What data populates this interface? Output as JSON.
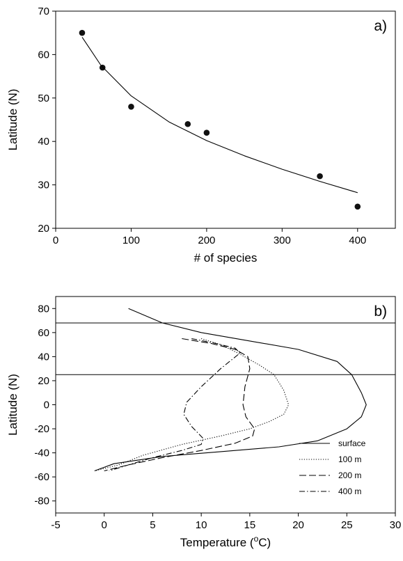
{
  "chart_data": [
    {
      "type": "scatter",
      "panel_label": "a)",
      "xlabel": "# of species",
      "ylabel": "Latitude (N)",
      "xlim": [
        0,
        450
      ],
      "ylim": [
        20,
        70
      ],
      "x_ticks": [
        0,
        100,
        200,
        300,
        400
      ],
      "y_ticks": [
        20,
        30,
        40,
        50,
        60,
        70
      ],
      "grid": false,
      "series": [
        {
          "kind": "points",
          "x": [
            35,
            62,
            100,
            175,
            200,
            350,
            400
          ],
          "y": [
            65,
            57,
            48,
            44,
            42,
            32,
            25
          ]
        },
        {
          "kind": "fit-line",
          "x": [
            35,
            60,
            100,
            150,
            200,
            250,
            300,
            350,
            400
          ],
          "y": [
            64,
            57.5,
            50.5,
            44.5,
            40.2,
            36.7,
            33.6,
            30.8,
            28.2
          ]
        }
      ]
    },
    {
      "type": "line",
      "panel_label": "b)",
      "xlabel": "Temperature (°C)",
      "xlabel_parts": {
        "before": "Temperature (",
        "sup": "o",
        "after": "C)"
      },
      "ylabel": "Latitude (N)",
      "xlim": [
        -5,
        30
      ],
      "ylim": [
        -90,
        90
      ],
      "x_ticks": [
        -5,
        0,
        5,
        10,
        15,
        20,
        25,
        30
      ],
      "y_ticks": [
        -80,
        -60,
        -40,
        -20,
        0,
        20,
        40,
        60,
        80
      ],
      "grid": false,
      "legend_position": "bottom-right",
      "reference_lines_y": [
        68,
        25
      ],
      "series": [
        {
          "name": "surface",
          "dash": "solid",
          "x": [
            2.5,
            6,
            10,
            15,
            20,
            24,
            25.5,
            26.5,
            27,
            26.5,
            25,
            22,
            18,
            12,
            6,
            1,
            -1
          ],
          "y": [
            80,
            68,
            60,
            53,
            46,
            36,
            25,
            10,
            0,
            -10,
            -20,
            -30,
            -35,
            -39,
            -43,
            -49,
            -55
          ]
        },
        {
          "name": "100 m",
          "dash": "dotted",
          "x": [
            10,
            12,
            14,
            16,
            17.5,
            18.5,
            19,
            18.5,
            17,
            15,
            12,
            8,
            4,
            1.5,
            -1
          ],
          "y": [
            55,
            50,
            42,
            33,
            25,
            12,
            0,
            -8,
            -14,
            -20,
            -26,
            -33,
            -42,
            -50,
            -55
          ]
        },
        {
          "name": "200 m",
          "dash": "long-dash",
          "x": [
            8,
            11,
            13.5,
            14.8,
            15,
            14.5,
            14.3,
            14.6,
            15.5,
            15.3,
            13.5,
            10,
            6,
            2.5,
            0
          ],
          "y": [
            55,
            51,
            46,
            40,
            30,
            15,
            0,
            -10,
            -20,
            -26,
            -32,
            -38,
            -44,
            -50,
            -55
          ]
        },
        {
          "name": "400 m",
          "dash": "dash-dot",
          "x": [
            9,
            11.5,
            13.5,
            14,
            12,
            10,
            8.5,
            8.2,
            9,
            10.2,
            10,
            8,
            5,
            2.5,
            0.5
          ],
          "y": [
            55,
            51,
            47,
            43,
            30,
            15,
            2,
            -8,
            -18,
            -28,
            -33,
            -38,
            -44,
            -50,
            -55
          ]
        }
      ]
    }
  ]
}
